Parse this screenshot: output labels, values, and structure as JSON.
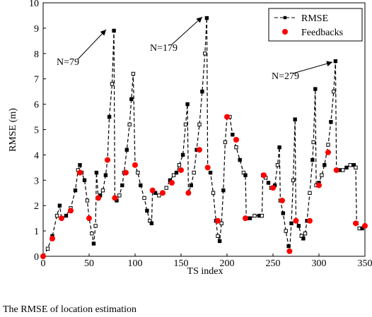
{
  "chart_data": {
    "type": "line",
    "x_label": "TS index",
    "y_label": "RMSE (m)",
    "caption": "The RMSE of location estimation",
    "annotations": [
      "N=79",
      "N=179",
      "N=279"
    ],
    "xlim": [
      0,
      350
    ],
    "xticks": [
      0,
      50,
      100,
      150,
      200,
      250,
      300,
      350
    ],
    "ylim": [
      0,
      10
    ],
    "yticks": [
      0,
      1,
      2,
      3,
      4,
      5,
      6,
      7,
      8,
      9,
      10
    ],
    "legend": "upper right",
    "series": [
      {
        "name": "RMSE",
        "color": "#000000",
        "x": [
          0,
          5,
          10,
          15,
          18,
          20,
          25,
          30,
          35,
          38,
          40,
          42,
          45,
          48,
          50,
          53,
          55,
          57,
          58,
          60,
          62,
          65,
          68,
          70,
          72,
          75,
          77,
          78,
          80,
          83,
          86,
          88,
          91,
          94,
          96,
          98,
          100,
          103,
          106,
          110,
          113,
          116,
          118,
          119,
          122,
          126,
          130,
          134,
          138,
          142,
          145,
          148,
          152,
          155,
          157,
          158,
          161,
          164,
          167,
          170,
          173,
          176,
          178,
          179,
          182,
          185,
          188,
          190,
          192,
          194,
          196,
          198,
          200,
          203,
          206,
          210,
          214,
          218,
          220,
          221,
          225,
          230,
          235,
          238,
          239,
          242,
          245,
          248,
          252,
          255,
          257,
          258,
          261,
          264,
          267,
          268,
          270,
          272,
          274,
          275,
          278,
          281,
          283,
          285,
          287,
          290,
          293,
          294,
          296,
          297,
          300,
          303,
          306,
          310,
          313,
          316,
          318,
          319,
          322,
          326,
          330,
          334,
          338,
          340,
          341,
          344,
          347,
          350
        ],
        "values": [
          0,
          0.3,
          0.8,
          1.6,
          2.0,
          1.5,
          1.6,
          1.9,
          2.6,
          3.4,
          3.6,
          3.3,
          3.0,
          2.2,
          1.5,
          0.9,
          0.5,
          1.2,
          3.3,
          2.3,
          2.4,
          2.6,
          3.2,
          3.8,
          5.5,
          6.8,
          8.9,
          2.3,
          2.2,
          2.4,
          2.8,
          3.3,
          4.2,
          5.2,
          6.2,
          7.2,
          3.6,
          3.3,
          2.8,
          2.3,
          1.8,
          1.4,
          1.3,
          2.6,
          2.5,
          2.4,
          2.5,
          2.7,
          3.0,
          3.2,
          3.3,
          3.6,
          4.0,
          5.2,
          6.0,
          2.5,
          2.8,
          3.3,
          4.2,
          5.2,
          6.5,
          8.0,
          9.4,
          3.5,
          3.3,
          2.5,
          1.4,
          0.8,
          0.6,
          1.3,
          2.6,
          4.5,
          5.5,
          5.5,
          4.8,
          4.3,
          3.8,
          3.3,
          3.2,
          1.5,
          1.5,
          1.6,
          1.6,
          1.6,
          3.2,
          3.1,
          2.9,
          2.7,
          2.8,
          3.6,
          4.3,
          2.2,
          1.7,
          1.0,
          0.4,
          0.2,
          1.3,
          3.0,
          5.4,
          1.4,
          1.2,
          0.8,
          0.7,
          0.9,
          1.4,
          2.5,
          3.8,
          4.5,
          6.6,
          2.8,
          2.9,
          3.2,
          3.6,
          4.4,
          5.3,
          6.5,
          7.7,
          3.4,
          3.4,
          3.4,
          3.5,
          3.6,
          3.6,
          3.5,
          1.3,
          1.1,
          1.1,
          1.2
        ]
      },
      {
        "name": "Feedbacks",
        "color": "#ff0000",
        "x": [
          0,
          10,
          20,
          30,
          40,
          50,
          60,
          70,
          78,
          90,
          100,
          119,
          130,
          140,
          150,
          158,
          170,
          179,
          190,
          200,
          210,
          220,
          240,
          250,
          260,
          268,
          275,
          290,
          300,
          310,
          319,
          340,
          350
        ],
        "values": [
          0,
          0.7,
          1.5,
          1.8,
          3.3,
          1.5,
          2.3,
          3.8,
          2.3,
          3.3,
          3.6,
          2.6,
          2.5,
          2.9,
          3.4,
          2.5,
          4.2,
          3.5,
          1.4,
          5.5,
          4.6,
          1.5,
          3.2,
          2.7,
          2.2,
          0.2,
          1.4,
          1.4,
          2.8,
          4.1,
          3.4,
          1.3,
          1.2
        ]
      }
    ]
  }
}
